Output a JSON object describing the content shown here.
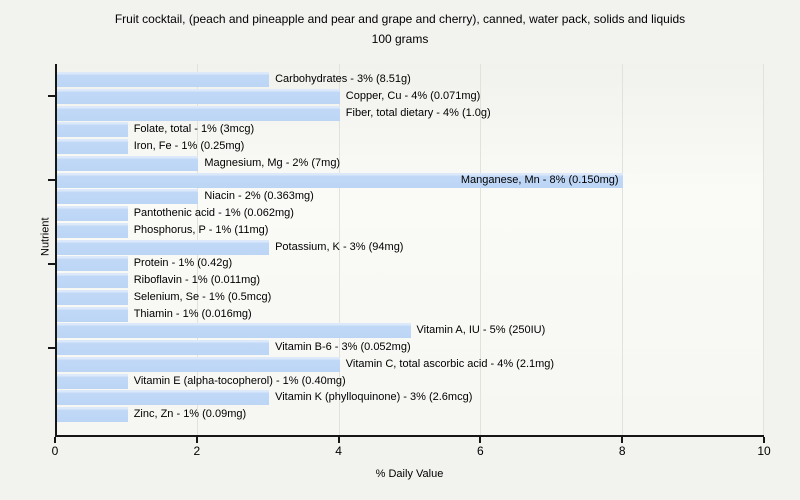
{
  "title": {
    "line1": "Fruit cocktail, (peach and pineapple and pear and grape and cherry), canned, water pack, solids and liquids",
    "line2": "100 grams"
  },
  "chart_data": {
    "type": "bar",
    "orientation": "horizontal",
    "title": "Fruit cocktail, (peach and pineapple and pear and grape and cherry), canned, water pack, solids and liquids",
    "subtitle": "100 grams",
    "xlabel": "% Daily Value",
    "ylabel": "Nutrient",
    "xlim": [
      0,
      10
    ],
    "xticks": [
      0,
      2,
      4,
      6,
      8,
      10
    ],
    "grid": "vertical-only",
    "legend": "none",
    "bar_color": "#bcd5f5",
    "bar_highlight_color": "#dbe9fb",
    "axis_color": "#161616",
    "ytick_row_indexes": [
      1,
      6,
      11,
      16
    ],
    "bars": [
      {
        "category": "Carbohydrates",
        "percent": 3,
        "amount": "8.51g",
        "label": "Carbohydrates - 3% (8.51g)",
        "label_inside": false
      },
      {
        "category": "Copper, Cu",
        "percent": 4,
        "amount": "0.071mg",
        "label": "Copper, Cu - 4% (0.071mg)",
        "label_inside": false
      },
      {
        "category": "Fiber, total dietary",
        "percent": 4,
        "amount": "1.0g",
        "label": "Fiber, total dietary - 4% (1.0g)",
        "label_inside": false
      },
      {
        "category": "Folate, total",
        "percent": 1,
        "amount": "3mcg",
        "label": "Folate, total - 1% (3mcg)",
        "label_inside": false
      },
      {
        "category": "Iron, Fe",
        "percent": 1,
        "amount": "0.25mg",
        "label": "Iron, Fe - 1% (0.25mg)",
        "label_inside": false
      },
      {
        "category": "Magnesium, Mg",
        "percent": 2,
        "amount": "7mg",
        "label": "Magnesium, Mg - 2% (7mg)",
        "label_inside": false
      },
      {
        "category": "Manganese, Mn",
        "percent": 8,
        "amount": "0.150mg",
        "label": "Manganese, Mn - 8% (0.150mg)",
        "label_inside": true
      },
      {
        "category": "Niacin",
        "percent": 2,
        "amount": "0.363mg",
        "label": "Niacin - 2% (0.363mg)",
        "label_inside": false
      },
      {
        "category": "Pantothenic acid",
        "percent": 1,
        "amount": "0.062mg",
        "label": "Pantothenic acid - 1% (0.062mg)",
        "label_inside": false
      },
      {
        "category": "Phosphorus, P",
        "percent": 1,
        "amount": "11mg",
        "label": "Phosphorus, P - 1% (11mg)",
        "label_inside": false
      },
      {
        "category": "Potassium, K",
        "percent": 3,
        "amount": "94mg",
        "label": "Potassium, K - 3% (94mg)",
        "label_inside": false
      },
      {
        "category": "Protein",
        "percent": 1,
        "amount": "0.42g",
        "label": "Protein - 1% (0.42g)",
        "label_inside": false
      },
      {
        "category": "Riboflavin",
        "percent": 1,
        "amount": "0.011mg",
        "label": "Riboflavin - 1% (0.011mg)",
        "label_inside": false
      },
      {
        "category": "Selenium, Se",
        "percent": 1,
        "amount": "0.5mcg",
        "label": "Selenium, Se - 1% (0.5mcg)",
        "label_inside": false
      },
      {
        "category": "Thiamin",
        "percent": 1,
        "amount": "0.016mg",
        "label": "Thiamin - 1% (0.016mg)",
        "label_inside": false
      },
      {
        "category": "Vitamin A, IU",
        "percent": 5,
        "amount": "250IU",
        "label": "Vitamin A, IU - 5% (250IU)",
        "label_inside": false
      },
      {
        "category": "Vitamin B-6",
        "percent": 3,
        "amount": "0.052mg",
        "label": "Vitamin B-6 - 3% (0.052mg)",
        "label_inside": false
      },
      {
        "category": "Vitamin C, total ascorbic acid",
        "percent": 4,
        "amount": "2.1mg",
        "label": "Vitamin C, total ascorbic acid - 4% (2.1mg)",
        "label_inside": false
      },
      {
        "category": "Vitamin E (alpha-tocopherol)",
        "percent": 1,
        "amount": "0.40mg",
        "label": "Vitamin E (alpha-tocopherol) - 1% (0.40mg)",
        "label_inside": false
      },
      {
        "category": "Vitamin K (phylloquinone)",
        "percent": 3,
        "amount": "2.6mcg",
        "label": "Vitamin K (phylloquinone) - 3% (2.6mcg)",
        "label_inside": false
      },
      {
        "category": "Zinc, Zn",
        "percent": 1,
        "amount": "0.09mg",
        "label": "Zinc, Zn - 1% (0.09mg)",
        "label_inside": false
      }
    ]
  }
}
